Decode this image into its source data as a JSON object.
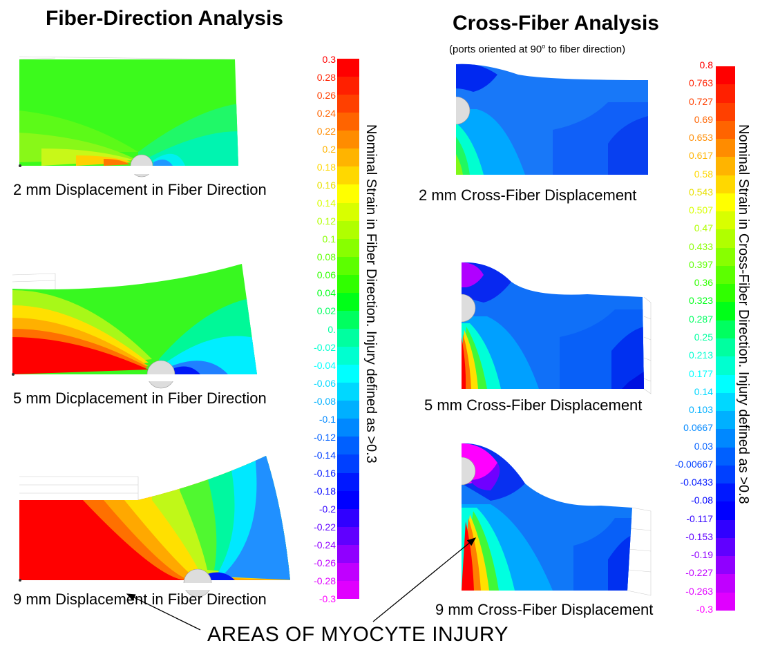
{
  "left": {
    "title": "Fiber-Direction Analysis",
    "captions": [
      "2 mm Displacement in Fiber Direction",
      "5 mm Dicplacement in Fiber Direction",
      "9 mm Displacement in Fiber Direction"
    ],
    "scale_label": "Nominal Strain in Fiber Direction.  Injury defined as >0.3",
    "scale_ticks": [
      "0.3",
      "0.28",
      "0.26",
      "0.24",
      "0.22",
      "0.2",
      "0.18",
      "0.16",
      "0.14",
      "0.12",
      "0.1",
      "0.08",
      "0.06",
      "0.04",
      "0.02",
      "0.",
      "-0.02",
      "-0.04",
      "-0.06",
      "-0.08",
      "-0.1",
      "-0.12",
      "-0.14",
      "-0.16",
      "-0.18",
      "-0.2",
      "-0.22",
      "-0.24",
      "-0.26",
      "-0.28",
      "-0.3"
    ]
  },
  "right": {
    "title": "Cross-Fiber Analysis",
    "subtitle_pre": "(ports oriented at 90",
    "subtitle_sup": "o",
    "subtitle_post": " to fiber direction)",
    "captions": [
      "2 mm Cross-Fiber Displacement",
      "5 mm Cross-Fiber Displacement",
      "9 mm Cross-Fiber Displacement"
    ],
    "scale_label": "Nominal Strain in Cross-Fiber Direction.  Injury defined as >0.8",
    "scale_ticks": [
      "0.8",
      "0.763",
      "0.727",
      "0.69",
      "0.653",
      "0.617",
      "0.58",
      "0.543",
      "0.507",
      "0.47",
      "0.433",
      "0.397",
      "0.36",
      "0.323",
      "0.287",
      "0.25",
      "0.213",
      "0.177",
      "0.14",
      "0.103",
      "0.0667",
      "0.03",
      "-0.00667",
      "-0.0433",
      "-0.08",
      "-0.117",
      "-0.153",
      "-0.19",
      "-0.227",
      "-0.263",
      "-0.3"
    ]
  },
  "annotation": "AREAS OF MYOCYTE INJURY",
  "colors": {
    "scale": [
      "#ff0000",
      "#ff2000",
      "#ff4000",
      "#ff6400",
      "#ff8c00",
      "#ffb400",
      "#ffd800",
      "#ffff00",
      "#d8ff00",
      "#b0ff00",
      "#88ff00",
      "#5cff00",
      "#30ff00",
      "#00ff18",
      "#00ff60",
      "#00ffa0",
      "#00ffd0",
      "#00ffff",
      "#00d8ff",
      "#00b0ff",
      "#0088ff",
      "#0060ff",
      "#0040ff",
      "#0018ff",
      "#0000ff",
      "#3000ff",
      "#6000ff",
      "#9000ff",
      "#c000ff",
      "#e000ff",
      "#ff00ff"
    ]
  }
}
